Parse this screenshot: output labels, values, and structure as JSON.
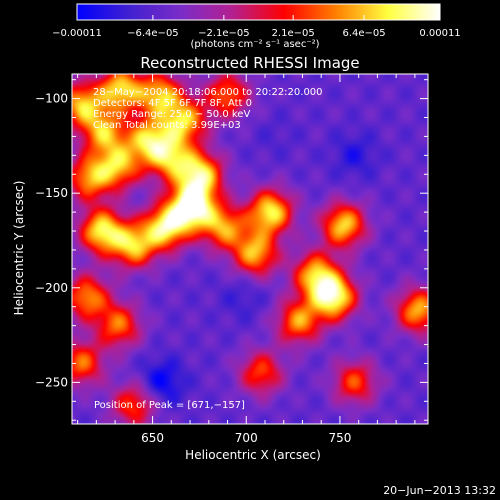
{
  "chart_data": {
    "type": "heatmap",
    "title": "Reconstructed RHESSI Image",
    "xlabel": "Heliocentric X (arcsec)",
    "ylabel": "Heliocentric Y (arcsec)",
    "xlim": [
      607,
      797
    ],
    "ylim": [
      -272,
      -87
    ],
    "x_ticks": [
      650,
      700,
      750
    ],
    "x_tick_labels": [
      "650",
      "700",
      "750"
    ],
    "y_ticks": [
      -100,
      -150,
      -200,
      -250
    ],
    "y_tick_labels": [
      "−100",
      "−150",
      "−200",
      "−250"
    ],
    "colorbar": {
      "range": [
        -0.00011,
        0.00011
      ],
      "tick_values": [
        -0.00011,
        -6.4e-05,
        -2.1e-05,
        2.1e-05,
        6.4e-05,
        0.00011
      ],
      "tick_labels": [
        "−0.00011",
        "−6.4e−05",
        "−2.1e−05",
        "2.1e−05",
        "6.4e−05",
        "0.00011"
      ],
      "unit_label": "(photons cm⁻² s⁻¹ asec⁻²)",
      "stops": [
        "#0000ff",
        "#4020d0",
        "#7a2cc8",
        "#b42090",
        "#ff0000",
        "#ff8000",
        "#ffff40",
        "#ffffff"
      ]
    },
    "annotations": [
      "28−May−2004 20:18:06.000 to 20:22:20.000",
      "Detectors: 4F 5F 6F 7F 8F, Att 0",
      "Energy Range: 25.0 − 50.0 keV",
      "Clean    Total counts: 3.99E+03"
    ],
    "peak_label": "Position of Peak = [671,−157]",
    "peak": [
      671,
      -157
    ],
    "background_value": -6e-05,
    "sources": [
      {
        "x": 612,
        "y": -103,
        "value": 6e-05
      },
      {
        "x": 633,
        "y": -95,
        "value": 7e-05
      },
      {
        "x": 654,
        "y": -98,
        "value": 6e-05
      },
      {
        "x": 624,
        "y": -118,
        "value": 5e-05
      },
      {
        "x": 648,
        "y": -122,
        "value": 6e-05
      },
      {
        "x": 667,
        "y": -112,
        "value": 6e-05
      },
      {
        "x": 690,
        "y": -98,
        "value": 4e-05
      },
      {
        "x": 616,
        "y": -142,
        "value": 5e-05
      },
      {
        "x": 632,
        "y": -136,
        "value": 5e-05
      },
      {
        "x": 660,
        "y": -132,
        "value": 5e-05
      },
      {
        "x": 676,
        "y": -140,
        "value": 7e-05
      },
      {
        "x": 671,
        "y": -157,
        "value": 0.00011
      },
      {
        "x": 657,
        "y": -168,
        "value": 8e-05
      },
      {
        "x": 623,
        "y": -170,
        "value": 8e-05
      },
      {
        "x": 640,
        "y": -178,
        "value": 6e-05
      },
      {
        "x": 615,
        "y": -205,
        "value": 5e-05
      },
      {
        "x": 688,
        "y": -168,
        "value": 5e-05
      },
      {
        "x": 705,
        "y": -182,
        "value": 6e-05
      },
      {
        "x": 713,
        "y": -160,
        "value": 8e-05
      },
      {
        "x": 752,
        "y": -167,
        "value": 7e-05
      },
      {
        "x": 737,
        "y": -193,
        "value": 6e-05
      },
      {
        "x": 747,
        "y": -205,
        "value": 9e-05
      },
      {
        "x": 728,
        "y": -218,
        "value": 5e-05
      },
      {
        "x": 792,
        "y": -212,
        "value": 6e-05
      },
      {
        "x": 632,
        "y": -220,
        "value": 4e-05
      },
      {
        "x": 612,
        "y": -240,
        "value": 4e-05
      },
      {
        "x": 640,
        "y": -262,
        "value": 3e-05
      },
      {
        "x": 708,
        "y": -245,
        "value": 3e-05
      },
      {
        "x": 758,
        "y": -250,
        "value": 3e-05
      },
      {
        "x": 655,
        "y": -250,
        "value": -0.00011
      },
      {
        "x": 698,
        "y": -205,
        "value": -8e-05
      },
      {
        "x": 758,
        "y": -130,
        "value": -9e-05
      },
      {
        "x": 715,
        "y": -120,
        "value": -7e-05
      }
    ]
  },
  "footer": {
    "timestamp": "20−Jun−2013 13:32"
  }
}
